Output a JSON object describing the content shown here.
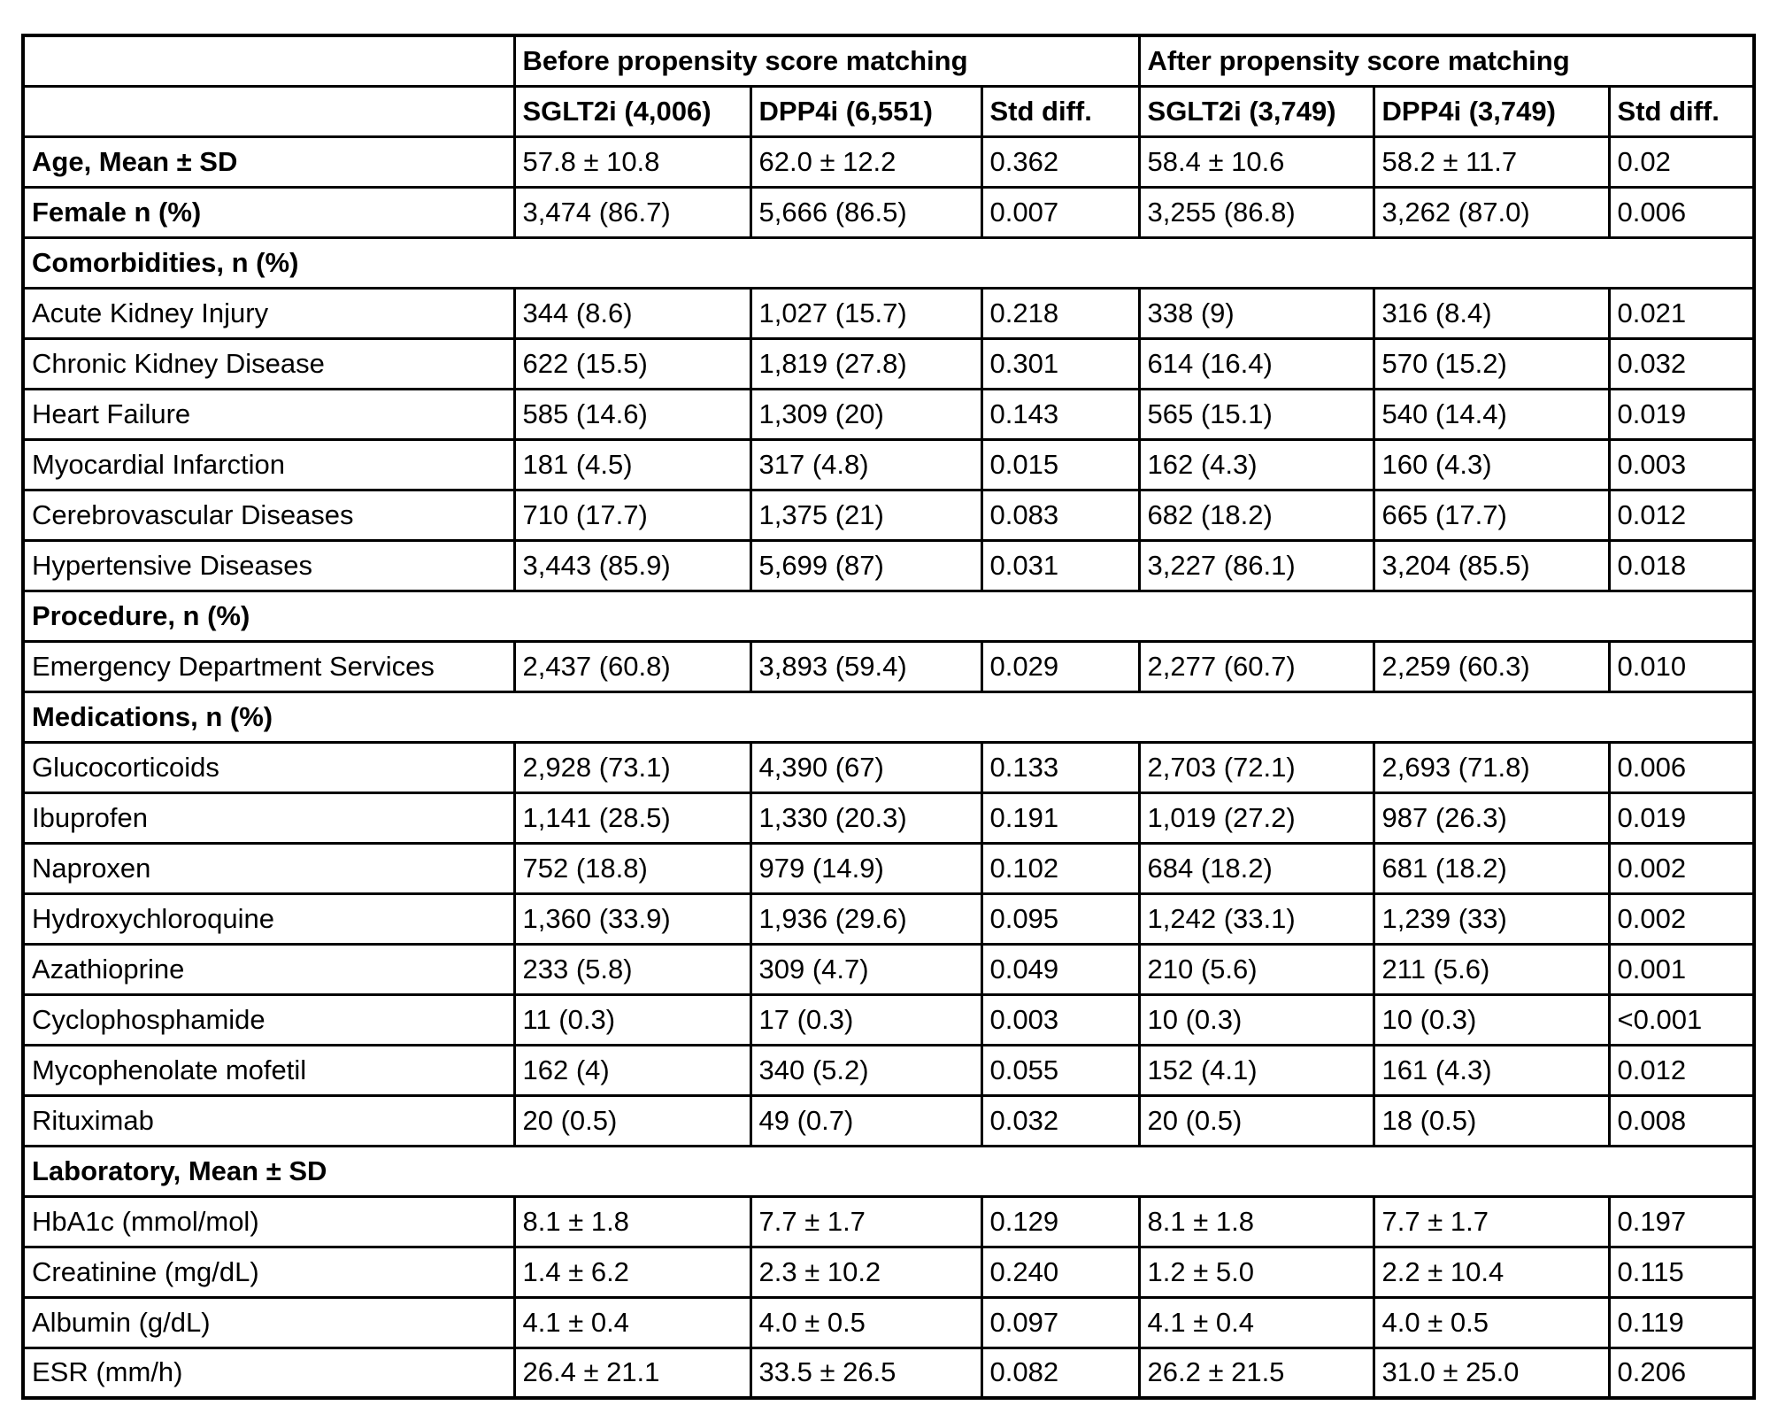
{
  "table": {
    "group_headers": {
      "before": "Before propensity score matching",
      "after": "After propensity score matching"
    },
    "column_headers": {
      "sglt2i_before": "SGLT2i (4,006)",
      "dpp4i_before": "DPP4i (6,551)",
      "std_before": "Std diff.",
      "sglt2i_after": "SGLT2i (3,749)",
      "dpp4i_after": "DPP4i (3,749)",
      "std_after": "Std diff."
    },
    "rows": [
      {
        "type": "data",
        "bold_label": true,
        "label": "Age, Mean ± SD",
        "values": [
          "57.8 ± 10.8",
          "62.0 ± 12.2",
          "0.362",
          "58.4 ± 10.6",
          "58.2 ± 11.7",
          "0.02"
        ]
      },
      {
        "type": "data",
        "bold_label": true,
        "label": "Female n (%)",
        "values": [
          "3,474 (86.7)",
          "5,666 (86.5)",
          "0.007",
          "3,255 (86.8)",
          "3,262 (87.0)",
          "0.006"
        ]
      },
      {
        "type": "section",
        "label": "Comorbidities, n (%)"
      },
      {
        "type": "data",
        "bold_label": false,
        "label": "Acute Kidney Injury",
        "values": [
          "344 (8.6)",
          "1,027 (15.7)",
          "0.218",
          "338 (9)",
          "316 (8.4)",
          "0.021"
        ]
      },
      {
        "type": "data",
        "bold_label": false,
        "label": "Chronic Kidney Disease",
        "values": [
          "622 (15.5)",
          "1,819 (27.8)",
          "0.301",
          "614 (16.4)",
          "570 (15.2)",
          "0.032"
        ]
      },
      {
        "type": "data",
        "bold_label": false,
        "label": "Heart Failure",
        "values": [
          "585 (14.6)",
          "1,309 (20)",
          "0.143",
          "565 (15.1)",
          "540 (14.4)",
          "0.019"
        ]
      },
      {
        "type": "data",
        "bold_label": false,
        "label": "Myocardial Infarction",
        "values": [
          "181 (4.5)",
          "317 (4.8)",
          "0.015",
          "162 (4.3)",
          "160 (4.3)",
          "0.003"
        ]
      },
      {
        "type": "data",
        "bold_label": false,
        "label": "Cerebrovascular Diseases",
        "values": [
          "710 (17.7)",
          "1,375 (21)",
          "0.083",
          "682 (18.2)",
          "665 (17.7)",
          "0.012"
        ]
      },
      {
        "type": "data",
        "bold_label": false,
        "label": "Hypertensive Diseases",
        "values": [
          "3,443 (85.9)",
          "5,699 (87)",
          "0.031",
          "3,227 (86.1)",
          "3,204 (85.5)",
          "0.018"
        ]
      },
      {
        "type": "section",
        "label": "Procedure, n (%)"
      },
      {
        "type": "data",
        "bold_label": false,
        "label": "Emergency Department Services",
        "values": [
          "2,437 (60.8)",
          "3,893 (59.4)",
          "0.029",
          "2,277 (60.7)",
          "2,259 (60.3)",
          "0.010"
        ]
      },
      {
        "type": "section",
        "label": "Medications, n (%)"
      },
      {
        "type": "data",
        "bold_label": false,
        "label": "Glucocorticoids",
        "values": [
          "2,928 (73.1)",
          "4,390 (67)",
          "0.133",
          "2,703 (72.1)",
          "2,693 (71.8)",
          "0.006"
        ]
      },
      {
        "type": "data",
        "bold_label": false,
        "label": "Ibuprofen",
        "values": [
          "1,141 (28.5)",
          "1,330 (20.3)",
          "0.191",
          "1,019 (27.2)",
          "987 (26.3)",
          "0.019"
        ]
      },
      {
        "type": "data",
        "bold_label": false,
        "label": "Naproxen",
        "values": [
          "752 (18.8)",
          "979 (14.9)",
          "0.102",
          "684 (18.2)",
          "681 (18.2)",
          "0.002"
        ]
      },
      {
        "type": "data",
        "bold_label": false,
        "label": "Hydroxychloroquine",
        "values": [
          "1,360 (33.9)",
          "1,936 (29.6)",
          "0.095",
          "1,242 (33.1)",
          "1,239 (33)",
          "0.002"
        ]
      },
      {
        "type": "data",
        "bold_label": false,
        "label": "Azathioprine",
        "values": [
          "233 (5.8)",
          "309 (4.7)",
          "0.049",
          "210 (5.6)",
          "211 (5.6)",
          "0.001"
        ]
      },
      {
        "type": "data",
        "bold_label": false,
        "label": "Cyclophosphamide",
        "values": [
          "11 (0.3)",
          "17 (0.3)",
          "0.003",
          "10 (0.3)",
          "10 (0.3)",
          "<0.001"
        ]
      },
      {
        "type": "data",
        "bold_label": false,
        "label": "Mycophenolate mofetil",
        "values": [
          "162 (4)",
          "340 (5.2)",
          "0.055",
          "152 (4.1)",
          "161 (4.3)",
          "0.012"
        ]
      },
      {
        "type": "data",
        "bold_label": false,
        "label": "Rituximab",
        "values": [
          "20 (0.5)",
          "49 (0.7)",
          "0.032",
          "20 (0.5)",
          "18 (0.5)",
          "0.008"
        ]
      },
      {
        "type": "section",
        "label": "Laboratory, Mean ± SD"
      },
      {
        "type": "data",
        "bold_label": false,
        "label": "HbA1c (mmol/mol)",
        "values": [
          "8.1 ± 1.8",
          "7.7 ± 1.7",
          "0.129",
          "8.1 ± 1.8",
          "7.7 ± 1.7",
          "0.197"
        ]
      },
      {
        "type": "data",
        "bold_label": false,
        "label": "Creatinine (mg/dL)",
        "values": [
          "1.4 ± 6.2",
          "2.3 ± 10.2",
          "0.240",
          "1.2 ± 5.0",
          "2.2 ± 10.4",
          "0.115"
        ]
      },
      {
        "type": "data",
        "bold_label": false,
        "label": "Albumin (g/dL)",
        "values": [
          "4.1 ± 0.4",
          "4.0 ± 0.5",
          "0.097",
          "4.1 ± 0.4",
          "4.0 ± 0.5",
          "0.119"
        ]
      },
      {
        "type": "data",
        "bold_label": false,
        "label": "ESR (mm/h)",
        "values": [
          "26.4 ± 21.1",
          "33.5 ± 26.5",
          "0.082",
          "26.2 ± 21.5",
          "31.0 ± 25.0",
          "0.206"
        ]
      }
    ]
  }
}
